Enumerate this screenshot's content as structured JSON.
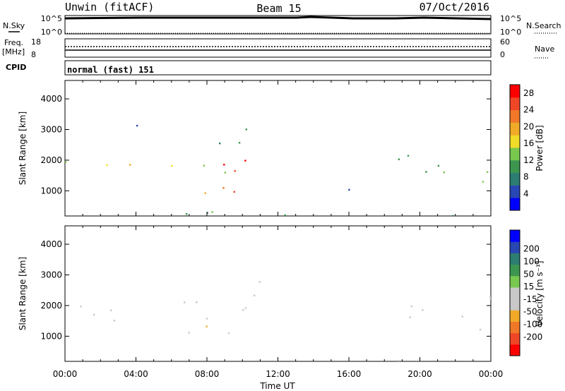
{
  "header": {
    "left": "Unwin (fitACF)",
    "center": "Beam 15",
    "right": "07/Oct/2016"
  },
  "top_panels": {
    "nsky": {
      "label": "N.Sky",
      "ticks": [
        "10^5",
        "10^0"
      ]
    },
    "nsearch": {
      "label": "N.Search",
      "ticks": [
        "10^5",
        "10^0"
      ]
    },
    "freq": {
      "label": "Freq.",
      "unit": "[MHz]",
      "ticks": [
        "18",
        "8"
      ]
    },
    "nave": {
      "label": "Nave",
      "ticks": [
        "60",
        "0"
      ]
    },
    "cpid": {
      "label": "CPID",
      "value": "normal (fast) 151"
    }
  },
  "colors": {
    "power": [
      "#0000ff",
      "#2846b4",
      "#2d7d73",
      "#3c9650",
      "#78c850",
      "#f0dc28",
      "#f0aa28",
      "#f07828",
      "#f04628",
      "#ff0000"
    ],
    "velocity": [
      "#ff0000",
      "#f04628",
      "#f07828",
      "#f0aa28",
      "#c8c8c8",
      "#c8c8c8",
      "#78c850",
      "#3c9650",
      "#2d7d73",
      "#2846b4",
      "#0000ff"
    ],
    "ground_scatter": "#c8c8c8"
  },
  "chart_data": [
    {
      "type": "heatmap",
      "title": "",
      "xlabel": "Time UT",
      "ylabel": "Slant Range [km]",
      "x_ticks": [
        "00:00",
        "04:00",
        "08:00",
        "12:00",
        "16:00",
        "20:00",
        "00:00"
      ],
      "xlim": [
        0,
        24
      ],
      "y_ticks": [
        "1000",
        "2000",
        "3000",
        "4000"
      ],
      "ylim": [
        180,
        4600
      ],
      "colorbar": {
        "label": "Power [dB]",
        "ticks": [
          "4",
          "8",
          "12",
          "16",
          "20",
          "24",
          "28"
        ],
        "range": [
          0,
          30
        ]
      },
      "regions": [
        {
          "t": [
            0,
            11
          ],
          "r": [
            1500,
            2000
          ],
          "value": 16
        },
        {
          "t": [
            5.5,
            10.5
          ],
          "r": [
            1600,
            2200
          ],
          "value": 26
        },
        {
          "t": [
            6,
            11
          ],
          "r": [
            850,
            1150
          ],
          "value": 18
        },
        {
          "t": [
            9,
            10.5
          ],
          "r": [
            950,
            1250
          ],
          "value": 28
        },
        {
          "t": [
            8.5,
            11.5
          ],
          "r": [
            2300,
            3300
          ],
          "value": 8
        },
        {
          "t": [
            3,
            5
          ],
          "r": [
            2900,
            3500
          ],
          "value": 8
        },
        {
          "t": [
            0,
            24
          ],
          "r": [
            200,
            400
          ],
          "value": 10
        },
        {
          "t": [
            15.5,
            17.5
          ],
          "r": [
            700,
            1100
          ],
          "value": 6
        },
        {
          "t": [
            18,
            19.5
          ],
          "r": [
            1600,
            2500
          ],
          "value": 10
        },
        {
          "t": [
            20,
            24
          ],
          "r": [
            1200,
            2300
          ],
          "value": 12
        }
      ]
    },
    {
      "type": "heatmap",
      "title": "",
      "xlabel": "Time UT",
      "ylabel": "Slant Range [km]",
      "x_ticks": [
        "00:00",
        "04:00",
        "08:00",
        "12:00",
        "16:00",
        "20:00",
        "00:00"
      ],
      "xlim": [
        0,
        24
      ],
      "y_ticks": [
        "1000",
        "2000",
        "3000",
        "4000"
      ],
      "ylim": [
        180,
        4600
      ],
      "colorbar": {
        "label": "Velocity [m s⁻¹]",
        "ticks": [
          "-200",
          "-100",
          "-50",
          "-15",
          "15",
          "50",
          "100",
          "200"
        ],
        "range": [
          -300,
          300
        ]
      },
      "regions": [
        {
          "t": [
            0,
            11
          ],
          "r": [
            1500,
            2000
          ],
          "value": 0
        },
        {
          "t": [
            5.5,
            10.5
          ],
          "r": [
            1600,
            2200
          ],
          "value": -40
        },
        {
          "t": [
            6,
            11
          ],
          "r": [
            850,
            1150
          ],
          "value": 0
        },
        {
          "t": [
            7,
            10.5
          ],
          "r": [
            1300,
            1500
          ],
          "value": -80
        },
        {
          "t": [
            9.5,
            11.5
          ],
          "r": [
            2300,
            3300
          ],
          "value": 0
        },
        {
          "t": [
            16,
            19
          ],
          "r": [
            200,
            400
          ],
          "value": -60
        },
        {
          "t": [
            18,
            24
          ],
          "r": [
            1200,
            2300
          ],
          "value": 0
        }
      ]
    }
  ]
}
